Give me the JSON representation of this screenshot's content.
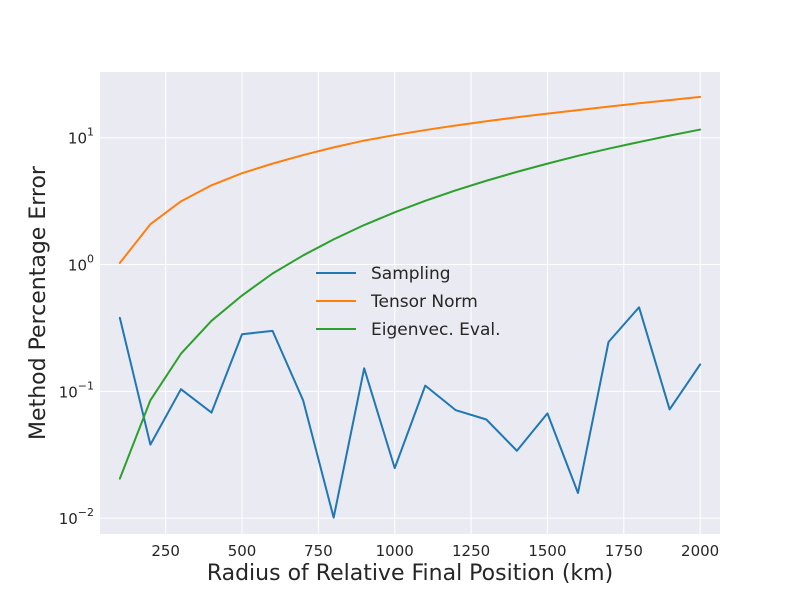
{
  "chart_data": {
    "type": "line",
    "title": "",
    "xlabel": "Radius of Relative Final Position (km)",
    "ylabel": "Method Percentage Error",
    "x": [
      100,
      200,
      300,
      400,
      500,
      600,
      700,
      800,
      900,
      1000,
      1100,
      1200,
      1300,
      1400,
      1500,
      1600,
      1700,
      1800,
      1900,
      2000
    ],
    "xlim": [
      35,
      2065
    ],
    "ylim": [
      0.0075,
      33
    ],
    "yscale": "log",
    "xticks": [
      250,
      500,
      750,
      1000,
      1250,
      1500,
      1750,
      2000
    ],
    "xtick_labels": [
      "250",
      "500",
      "750",
      "1000",
      "1250",
      "1500",
      "1750",
      "2000"
    ],
    "yticks": [
      0.01,
      0.1,
      1,
      10
    ],
    "ytick_labels": [
      {
        "base": "10",
        "exp": "−2"
      },
      {
        "base": "10",
        "exp": "−1"
      },
      {
        "base": "10",
        "exp": "0"
      },
      {
        "base": "10",
        "exp": "1"
      }
    ],
    "grid": true,
    "legend": "center",
    "series": [
      {
        "name": "Sampling",
        "color": "#1f77b4",
        "values": [
          0.38,
          0.038,
          0.104,
          0.068,
          0.282,
          0.3,
          0.085,
          0.0101,
          0.152,
          0.0248,
          0.111,
          0.071,
          0.06,
          0.034,
          0.067,
          0.0158,
          0.245,
          0.46,
          0.072,
          0.163
        ]
      },
      {
        "name": "Tensor Norm",
        "color": "#ff7f0e",
        "values": [
          1.03,
          2.08,
          3.15,
          4.22,
          5.25,
          6.25,
          7.3,
          8.4,
          9.5,
          10.5,
          11.5,
          12.5,
          13.5,
          14.5,
          15.5,
          16.5,
          17.6,
          18.7,
          19.8,
          21.0
        ]
      },
      {
        "name": "Eigenvec. Eval.",
        "color": "#2ca02c",
        "values": [
          0.0205,
          0.085,
          0.198,
          0.36,
          0.57,
          0.85,
          1.18,
          1.58,
          2.05,
          2.58,
          3.18,
          3.85,
          4.58,
          5.38,
          6.25,
          7.2,
          8.2,
          9.25,
          10.4,
          11.6
        ]
      }
    ]
  }
}
